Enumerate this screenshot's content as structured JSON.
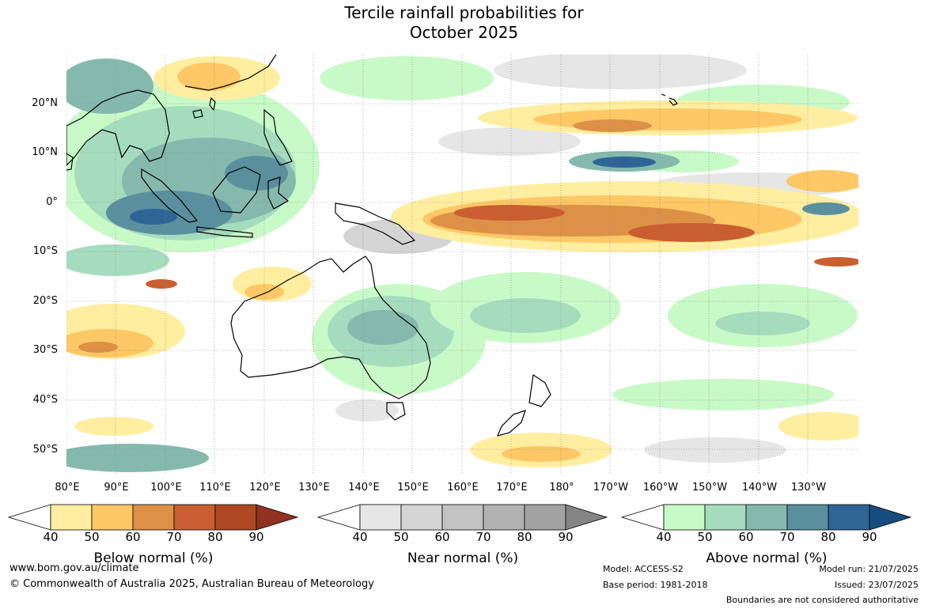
{
  "title_line1": "Tercile rainfall probabilities for",
  "title_line2": "October 2025",
  "lat_labels": [
    "20°N",
    "10°N",
    "0°",
    "10°S",
    "20°S",
    "30°S",
    "40°S",
    "50°S"
  ],
  "lon_labels": [
    "80°E",
    "90°E",
    "100°E",
    "110°E",
    "120°E",
    "130°E",
    "140°E",
    "150°E",
    "160°E",
    "170°E",
    "180°",
    "170°W",
    "160°W",
    "150°W",
    "140°W",
    "130°W"
  ],
  "colorbars": [
    {
      "title": "Below normal (%)",
      "ticks": [
        "40",
        "50",
        "60",
        "70",
        "80",
        "90"
      ],
      "colors": [
        "#ffeea0",
        "#fdc865",
        "#dd9147",
        "#c95f31",
        "#ad4822",
        "#913120"
      ]
    },
    {
      "title": "Near normal (%)",
      "ticks": [
        "40",
        "50",
        "60",
        "70",
        "80",
        "90"
      ],
      "colors": [
        "#e6e6e6",
        "#d4d4d4",
        "#c3c3c3",
        "#b2b2b2",
        "#a2a2a2",
        "#848484"
      ]
    },
    {
      "title": "Above normal (%)",
      "ticks": [
        "40",
        "50",
        "60",
        "70",
        "80",
        "90"
      ],
      "colors": [
        "#c8fac8",
        "#a6dcbe",
        "#86b9ad",
        "#5a909e",
        "#2f6596",
        "#164c80"
      ]
    }
  ],
  "footer": {
    "url": "www.bom.gov.au/climate",
    "copyright": "© Commonwealth of Australia 2025, Australian Bureau of Meteorology",
    "model": "Model: ACCESS-S2",
    "base_period": "Base period: 1981-2018",
    "model_run": "Model run: 21/07/2025",
    "issued": "Issued: 23/07/2025",
    "disclaimer": "Boundaries are not considered authoritative"
  }
}
